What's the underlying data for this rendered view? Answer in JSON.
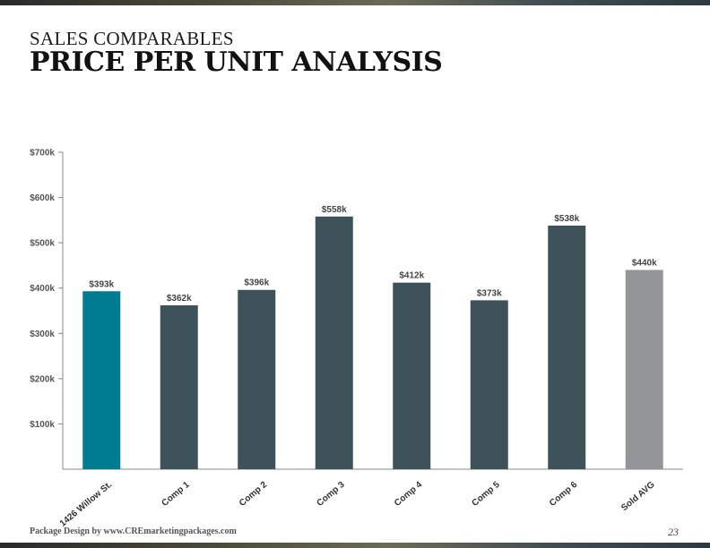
{
  "header": {
    "eyebrow": "SALES COMPARABLES",
    "title": "PRICE PER UNIT ANALYSIS"
  },
  "footer": {
    "credit": "Package Design by www.CREmarketingpackages.com",
    "page_number": "23"
  },
  "colors": {
    "subject": "#007c91",
    "comp": "#3d5259",
    "average": "#939598",
    "axis": "#888888"
  },
  "chart_data": {
    "type": "bar",
    "title": "",
    "xlabel": "",
    "ylabel": "",
    "ylim": [
      0,
      700
    ],
    "unit": "k",
    "y_ticks": [
      "$100k",
      "$200k",
      "$300k",
      "$400k",
      "$500k",
      "$600k",
      "$700k"
    ],
    "categories": [
      "1426 Willow St.",
      "Comp 1",
      "Comp 2",
      "Comp 3",
      "Comp 4",
      "Comp 5",
      "Comp 6",
      "Sold AVG"
    ],
    "values": [
      393,
      362,
      396,
      558,
      412,
      373,
      538,
      440
    ],
    "value_labels": [
      "$393k",
      "$362k",
      "$396k",
      "$558k",
      "$412k",
      "$373k",
      "$538k",
      "$440k"
    ],
    "bar_roles": [
      "subject",
      "comp",
      "comp",
      "comp",
      "comp",
      "comp",
      "comp",
      "average"
    ],
    "grid": false,
    "legend": "none"
  }
}
